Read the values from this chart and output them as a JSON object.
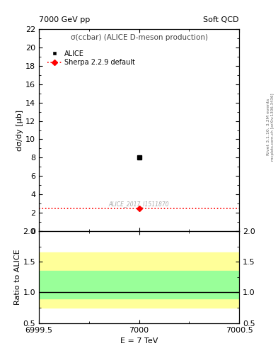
{
  "title_left": "7000 GeV pp",
  "title_right": "Soft QCD",
  "main_title": "σ(ccbar) (ALICE D-meson production)",
  "xlabel": "E = 7 TeV",
  "ylabel_main": "dσ/dy [μb]",
  "ylabel_ratio": "Ratio to ALICE",
  "right_label_top": "Rivet 3.1.10, 3.2M events",
  "right_label_bot": "mcplots.cern.ch [arXiv:1306.3436]",
  "watermark": "ALICE_2017_I1511870",
  "xlim": [
    6999.5,
    7000.5
  ],
  "ylim_main": [
    0,
    22
  ],
  "ylim_ratio": [
    0.5,
    2.0
  ],
  "xticks": [
    6999.5,
    7000.0,
    7000.5
  ],
  "yticks_main": [
    0,
    2,
    4,
    6,
    8,
    10,
    12,
    14,
    16,
    18,
    20,
    22
  ],
  "yticks_ratio": [
    0.5,
    1.0,
    1.5,
    2.0
  ],
  "data_x": [
    7000.0
  ],
  "data_y": [
    8.0
  ],
  "data_color": "#000000",
  "sherpa_x": [
    7000.0
  ],
  "sherpa_y": [
    2.5
  ],
  "sherpa_color": "#ff0000",
  "band_yellow_low": 0.75,
  "band_yellow_high": 1.65,
  "band_green_low": 0.9,
  "band_green_high": 1.35,
  "band_yellow_color": "#ffff99",
  "band_green_color": "#99ff99",
  "ratio_line": 1.0,
  "legend_alice": "ALICE",
  "legend_sherpa": "Sherpa 2.2.9 default",
  "background_color": "#ffffff",
  "font_size": 8
}
